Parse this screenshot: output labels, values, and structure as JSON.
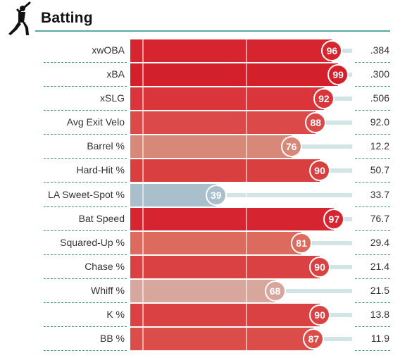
{
  "header": {
    "title": "Batting",
    "icon": "batter-icon"
  },
  "colors": {
    "rule": "#5aa7a3",
    "track": "#d3e4e6"
  },
  "rows": [
    {
      "label": "xwOBA",
      "percentile": 96,
      "value": ".384",
      "color": "#d6252f"
    },
    {
      "label": "xBA",
      "percentile": 99,
      "value": ".300",
      "color": "#d4202b"
    },
    {
      "label": "xSLG",
      "percentile": 92,
      "value": ".506",
      "color": "#d9353a"
    },
    {
      "label": "Avg Exit Velo",
      "percentile": 88,
      "value": "92.0",
      "color": "#db4a48"
    },
    {
      "label": "Barrel %",
      "percentile": 76,
      "value": "12.2",
      "color": "#d88878"
    },
    {
      "label": "Hard-Hit %",
      "percentile": 90,
      "value": "50.7",
      "color": "#da3f40"
    },
    {
      "label": "LA Sweet-Spot %",
      "percentile": 39,
      "value": "33.7",
      "color": "#a9bfcc"
    },
    {
      "label": "Bat Speed",
      "percentile": 97,
      "value": "76.7",
      "color": "#d62430"
    },
    {
      "label": "Squared-Up %",
      "percentile": 81,
      "value": "29.4",
      "color": "#dc6b5d"
    },
    {
      "label": "Chase %",
      "percentile": 90,
      "value": "21.4",
      "color": "#da4142"
    },
    {
      "label": "Whiff %",
      "percentile": 68,
      "value": "21.5",
      "color": "#d7a79e"
    },
    {
      "label": "K %",
      "percentile": 90,
      "value": "13.8",
      "color": "#da4142"
    },
    {
      "label": "BB %",
      "percentile": 87,
      "value": "11.9",
      "color": "#db4d49"
    }
  ]
}
